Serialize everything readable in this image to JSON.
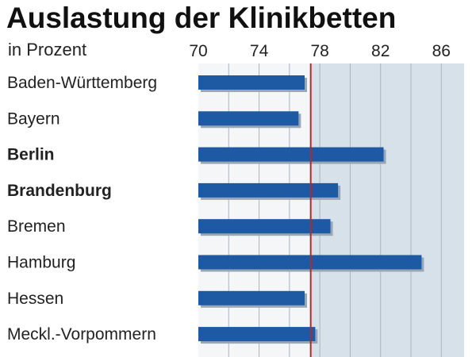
{
  "chart_data": {
    "type": "bar",
    "orientation": "horizontal",
    "title": "Auslastung der Klinikbetten",
    "subtitle": "in Prozent",
    "categories": [
      "Baden-Württemberg",
      "Bayern",
      "Berlin",
      "Brandenburg",
      "Bremen",
      "Hamburg",
      "Hessen",
      "Meckl.-Vorpommern"
    ],
    "bold_categories": [
      "Berlin",
      "Brandenburg"
    ],
    "values": [
      77.0,
      76.6,
      82.2,
      79.2,
      78.7,
      84.7,
      77.0,
      77.7
    ],
    "xlim": [
      70,
      87.5
    ],
    "xticks": [
      70,
      74,
      78,
      82,
      86
    ],
    "reference_line": 77.4,
    "grid": true,
    "colors": {
      "bar": "#1d5aa3",
      "bar_shadow": "#9aa6b4",
      "panel_below_ref": "#f4f6f8",
      "panel_above_ref": "#d7e1ea",
      "gridline": "#aab4be",
      "reference_line": "#b02a2a"
    }
  }
}
